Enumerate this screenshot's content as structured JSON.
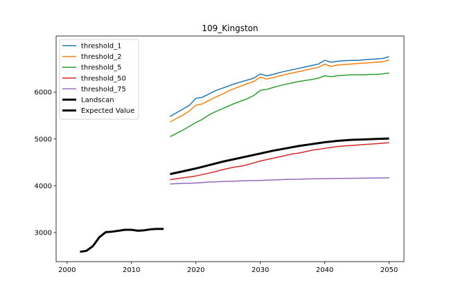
{
  "chart_data": {
    "type": "line",
    "title": "109_Kingston",
    "xlabel": "",
    "ylabel": "",
    "xlim": [
      1998.3,
      2052.3
    ],
    "ylim": [
      2380,
      7200
    ],
    "xticks": [
      2000,
      2010,
      2020,
      2030,
      2040,
      2050
    ],
    "yticks": [
      3000,
      4000,
      5000,
      6000
    ],
    "grid": false,
    "legend": "top-left",
    "series": [
      {
        "name": "threshold_1",
        "color": "#1f77b4",
        "width": 1.5,
        "x": [
          2016,
          2017,
          2018,
          2019,
          2020,
          2021,
          2022,
          2023,
          2024,
          2025,
          2026,
          2027,
          2028,
          2029,
          2030,
          2031,
          2032,
          2033,
          2034,
          2035,
          2036,
          2037,
          2038,
          2039,
          2040,
          2041,
          2042,
          2043,
          2044,
          2045,
          2046,
          2047,
          2048,
          2049,
          2050
        ],
        "y": [
          5480,
          5560,
          5640,
          5720,
          5870,
          5890,
          5960,
          6030,
          6080,
          6130,
          6180,
          6220,
          6260,
          6300,
          6390,
          6350,
          6380,
          6420,
          6450,
          6480,
          6510,
          6540,
          6570,
          6600,
          6680,
          6640,
          6660,
          6670,
          6680,
          6680,
          6690,
          6700,
          6710,
          6720,
          6760
        ]
      },
      {
        "name": "threshold_2",
        "color": "#ff7f0e",
        "width": 1.5,
        "x": [
          2016,
          2017,
          2018,
          2019,
          2020,
          2021,
          2022,
          2023,
          2024,
          2025,
          2026,
          2027,
          2028,
          2029,
          2030,
          2031,
          2032,
          2033,
          2034,
          2035,
          2036,
          2037,
          2038,
          2039,
          2040,
          2041,
          2042,
          2043,
          2044,
          2045,
          2046,
          2047,
          2048,
          2049,
          2050
        ],
        "y": [
          5360,
          5440,
          5510,
          5600,
          5720,
          5750,
          5820,
          5890,
          5950,
          6020,
          6080,
          6130,
          6180,
          6230,
          6320,
          6280,
          6310,
          6350,
          6380,
          6410,
          6440,
          6470,
          6500,
          6530,
          6600,
          6550,
          6580,
          6590,
          6600,
          6610,
          6620,
          6630,
          6640,
          6650,
          6690
        ]
      },
      {
        "name": "threshold_5",
        "color": "#2ca02c",
        "width": 1.5,
        "x": [
          2016,
          2017,
          2018,
          2019,
          2020,
          2021,
          2022,
          2023,
          2024,
          2025,
          2026,
          2027,
          2028,
          2029,
          2030,
          2031,
          2032,
          2033,
          2034,
          2035,
          2036,
          2037,
          2038,
          2039,
          2040,
          2041,
          2042,
          2043,
          2044,
          2045,
          2046,
          2047,
          2048,
          2049,
          2050
        ],
        "y": [
          5050,
          5120,
          5190,
          5270,
          5350,
          5420,
          5510,
          5580,
          5640,
          5700,
          5760,
          5810,
          5860,
          5930,
          6040,
          6060,
          6100,
          6140,
          6170,
          6200,
          6230,
          6250,
          6270,
          6300,
          6350,
          6330,
          6350,
          6360,
          6370,
          6370,
          6370,
          6380,
          6380,
          6390,
          6410
        ]
      },
      {
        "name": "threshold_50",
        "color": "#d62728",
        "width": 1.5,
        "x": [
          2016,
          2017,
          2018,
          2019,
          2020,
          2021,
          2022,
          2023,
          2024,
          2025,
          2026,
          2027,
          2028,
          2029,
          2030,
          2031,
          2032,
          2033,
          2034,
          2035,
          2036,
          2037,
          2038,
          2039,
          2040,
          2041,
          2042,
          2043,
          2044,
          2045,
          2046,
          2047,
          2048,
          2049,
          2050
        ],
        "y": [
          4130,
          4150,
          4170,
          4190,
          4210,
          4240,
          4270,
          4300,
          4340,
          4370,
          4400,
          4420,
          4450,
          4490,
          4530,
          4560,
          4590,
          4620,
          4650,
          4680,
          4700,
          4730,
          4760,
          4780,
          4800,
          4820,
          4840,
          4850,
          4860,
          4870,
          4880,
          4890,
          4900,
          4910,
          4920
        ]
      },
      {
        "name": "threshold_75",
        "color": "#9467bd",
        "width": 1.5,
        "x": [
          2016,
          2017,
          2018,
          2019,
          2020,
          2021,
          2022,
          2023,
          2024,
          2025,
          2026,
          2027,
          2028,
          2029,
          2030,
          2031,
          2032,
          2033,
          2034,
          2035,
          2036,
          2037,
          2038,
          2039,
          2040,
          2041,
          2042,
          2043,
          2044,
          2045,
          2046,
          2047,
          2048,
          2049,
          2050
        ],
        "y": [
          4040,
          4045,
          4050,
          4055,
          4060,
          4070,
          4080,
          4085,
          4090,
          4095,
          4100,
          4105,
          4110,
          4112,
          4115,
          4120,
          4125,
          4130,
          4135,
          4138,
          4140,
          4145,
          4148,
          4150,
          4152,
          4155,
          4157,
          4158,
          4160,
          4162,
          4163,
          4165,
          4167,
          4168,
          4170
        ]
      },
      {
        "name": "Landscan",
        "color": "#000000",
        "width": 3,
        "x": [
          2002,
          2003,
          2004,
          2005,
          2006,
          2007,
          2008,
          2009,
          2010,
          2011,
          2012,
          2013,
          2014,
          2015
        ],
        "y": [
          2590,
          2610,
          2710,
          2900,
          3010,
          3020,
          3040,
          3060,
          3060,
          3040,
          3050,
          3070,
          3080,
          3080
        ]
      },
      {
        "name": "Expected Value",
        "color": "#000000",
        "width": 3,
        "x": [
          2016,
          2018,
          2020,
          2022,
          2024,
          2026,
          2028,
          2030,
          2032,
          2034,
          2036,
          2038,
          2040,
          2042,
          2044,
          2046,
          2048,
          2050
        ],
        "y": [
          4250,
          4310,
          4370,
          4440,
          4510,
          4570,
          4630,
          4690,
          4750,
          4800,
          4850,
          4890,
          4930,
          4960,
          4980,
          4990,
          5000,
          5010
        ]
      }
    ]
  }
}
